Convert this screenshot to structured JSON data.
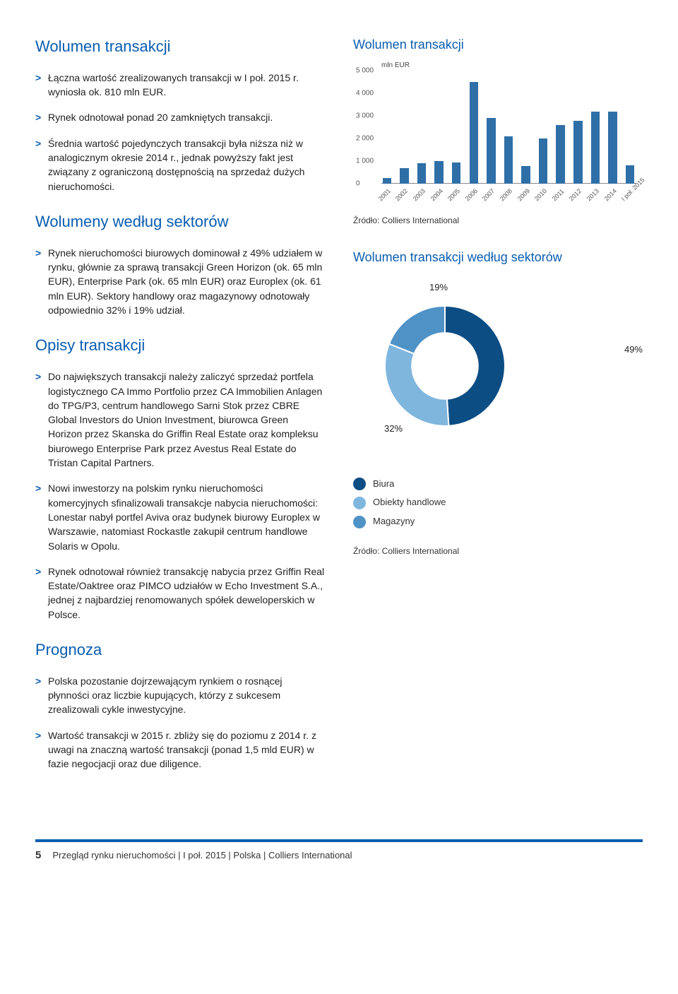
{
  "left": {
    "h_wolumen": "Wolumen transakcji",
    "b1": "Łączna wartość zrealizowanych transakcji w I poł. 2015 r. wyniosła ok. 810 mln EUR.",
    "b2": "Rynek odnotował ponad 20 zamkniętych transakcji.",
    "b3": "Średnia wartość pojedynczych transakcji była niższa niż w analogicznym okresie 2014 r., jednak powyższy fakt jest związany z ograniczoną dostępnością na sprzedaż dużych nieruchomości.",
    "h_sektory": "Wolumeny według sektorów",
    "b4": "Rynek nieruchomości biurowych dominował z 49% udziałem w rynku, głównie za sprawą transakcji Green Horizon (ok. 65 mln EUR), Enterprise Park (ok. 65 mln EUR) oraz Europlex (ok. 61 mln EUR). Sektory handlowy oraz magazynowy odnotowały odpowiednio 32% i 19% udział.",
    "h_opisy": "Opisy transakcji",
    "b5": "Do największych transakcji należy zaliczyć sprzedaż portfela logistycznego CA Immo Portfolio przez CA Immobilien Anlagen do TPG/P3, centrum handlowego Sarni Stok przez CBRE Global Investors do Union Investment, biurowca Green Horizon przez Skanska do Griffin Real Estate oraz kompleksu biurowego Enterprise Park przez Avestus Real Estate do Tristan Capital Partners.",
    "b6": "Nowi inwestorzy na polskim rynku nieruchomości komercyjnych sfinalizowali transakcje nabycia nieruchomości: Lonestar nabył portfel Aviva oraz budynek biurowy Europlex w Warszawie, natomiast Rockastle zakupił centrum handlowe Solaris w Opolu.",
    "b7": "Rynek odnotował również transakcję nabycia przez Griffin Real Estate/Oaktree oraz PIMCO udziałów w Echo Investment S.A., jednej z najbardziej renomowanych spółek deweloperskich w Polsce.",
    "h_prognoza": "Prognoza",
    "b8": "Polska pozostanie dojrzewającym rynkiem o rosnącej płynności oraz liczbie kupujących, którzy z sukcesem zrealizowali cykle inwestycyjne.",
    "b9": "Wartość transakcji w 2015 r. zbliży się do poziomu z 2014 r. z uwagi na znaczną wartość transakcji (ponad 1,5 mld EUR) w fazie negocjacji oraz due diligence."
  },
  "right": {
    "chart1_title": "Wolumen transakcji",
    "chart2_title": "Wolumen transakcji według sektorów",
    "source": "Źródło: Colliers International"
  },
  "bar_chart": {
    "type": "bar",
    "y_label": "mln EUR",
    "y_max": 5000,
    "y_ticks": [
      0,
      1000,
      2000,
      3000,
      4000,
      5000
    ],
    "y_tick_labels": [
      "0",
      "1 000",
      "2 000",
      "3 000",
      "4 000",
      "5 000"
    ],
    "categories": [
      "2001",
      "2002",
      "2003",
      "2004",
      "2005",
      "2006",
      "2007",
      "2008",
      "2009",
      "2010",
      "2011",
      "2012",
      "2013",
      "2014",
      "I poł. 2015"
    ],
    "values": [
      250,
      700,
      900,
      1000,
      950,
      4500,
      2900,
      2100,
      800,
      2000,
      2600,
      2800,
      3200,
      3200,
      810
    ],
    "bar_color": "#2f6fa7",
    "axis_color": "#888888",
    "label_fontsize": 10,
    "background": "#ffffff"
  },
  "donut_chart": {
    "type": "donut",
    "slices": [
      {
        "label": "Biura",
        "value": 49,
        "color": "#0c4d84"
      },
      {
        "label": "Obiekty handlowe",
        "value": 32,
        "color": "#7fb6de"
      },
      {
        "label": "Magazyny",
        "value": 19,
        "color": "#4f92c6"
      }
    ],
    "value_labels": [
      "49%",
      "32%",
      "19%"
    ],
    "inner_radius_ratio": 0.55,
    "background": "#ffffff",
    "label_fontsize": 13
  },
  "footer": {
    "page": "5",
    "text": "Przegląd rynku nieruchomości | I poł. 2015 | Polska | Colliers International"
  }
}
